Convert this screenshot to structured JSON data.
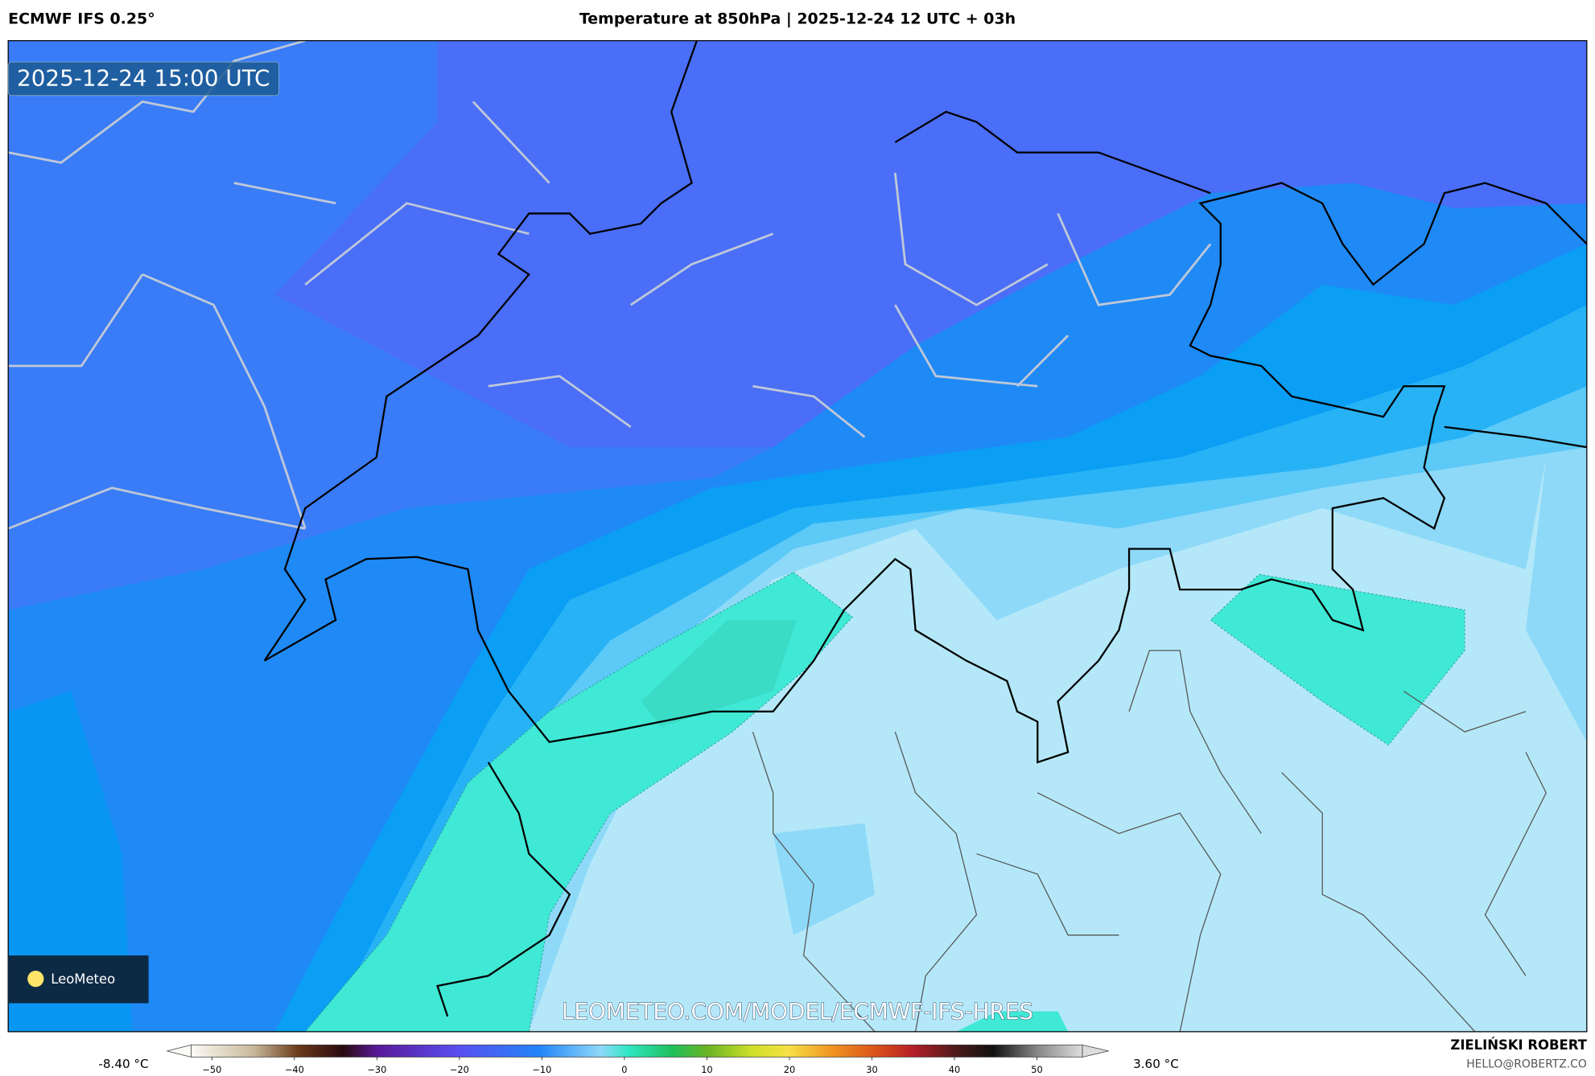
{
  "header": {
    "model": "ECMWF IFS 0.25°",
    "title": "Temperature at 850hPa | 2025-12-24 12 UTC + 03h"
  },
  "map": {
    "timestamp": "2025-12-24 15:00 UTC",
    "watermark": "LEOMETEO.COM/MODEL/ECMWF-IFS-HRES",
    "logo": "LeoMeteo"
  },
  "colorbar": {
    "min_label": "-8.40 °C",
    "max_label": "3.60 °C",
    "lim": [
      -52.5,
      55.5
    ],
    "ticks": [
      {
        "value": -50,
        "label": "−50"
      },
      {
        "value": -40,
        "label": "−40"
      },
      {
        "value": -30,
        "label": "−30"
      },
      {
        "value": -20,
        "label": "−20"
      },
      {
        "value": -10,
        "label": "−10"
      },
      0,
      10,
      20,
      30,
      40,
      50
    ]
  },
  "footer": {
    "author": "ZIELIŃSKI ROBERT",
    "contact": "HELLO@ROBERTZ.CO"
  }
}
